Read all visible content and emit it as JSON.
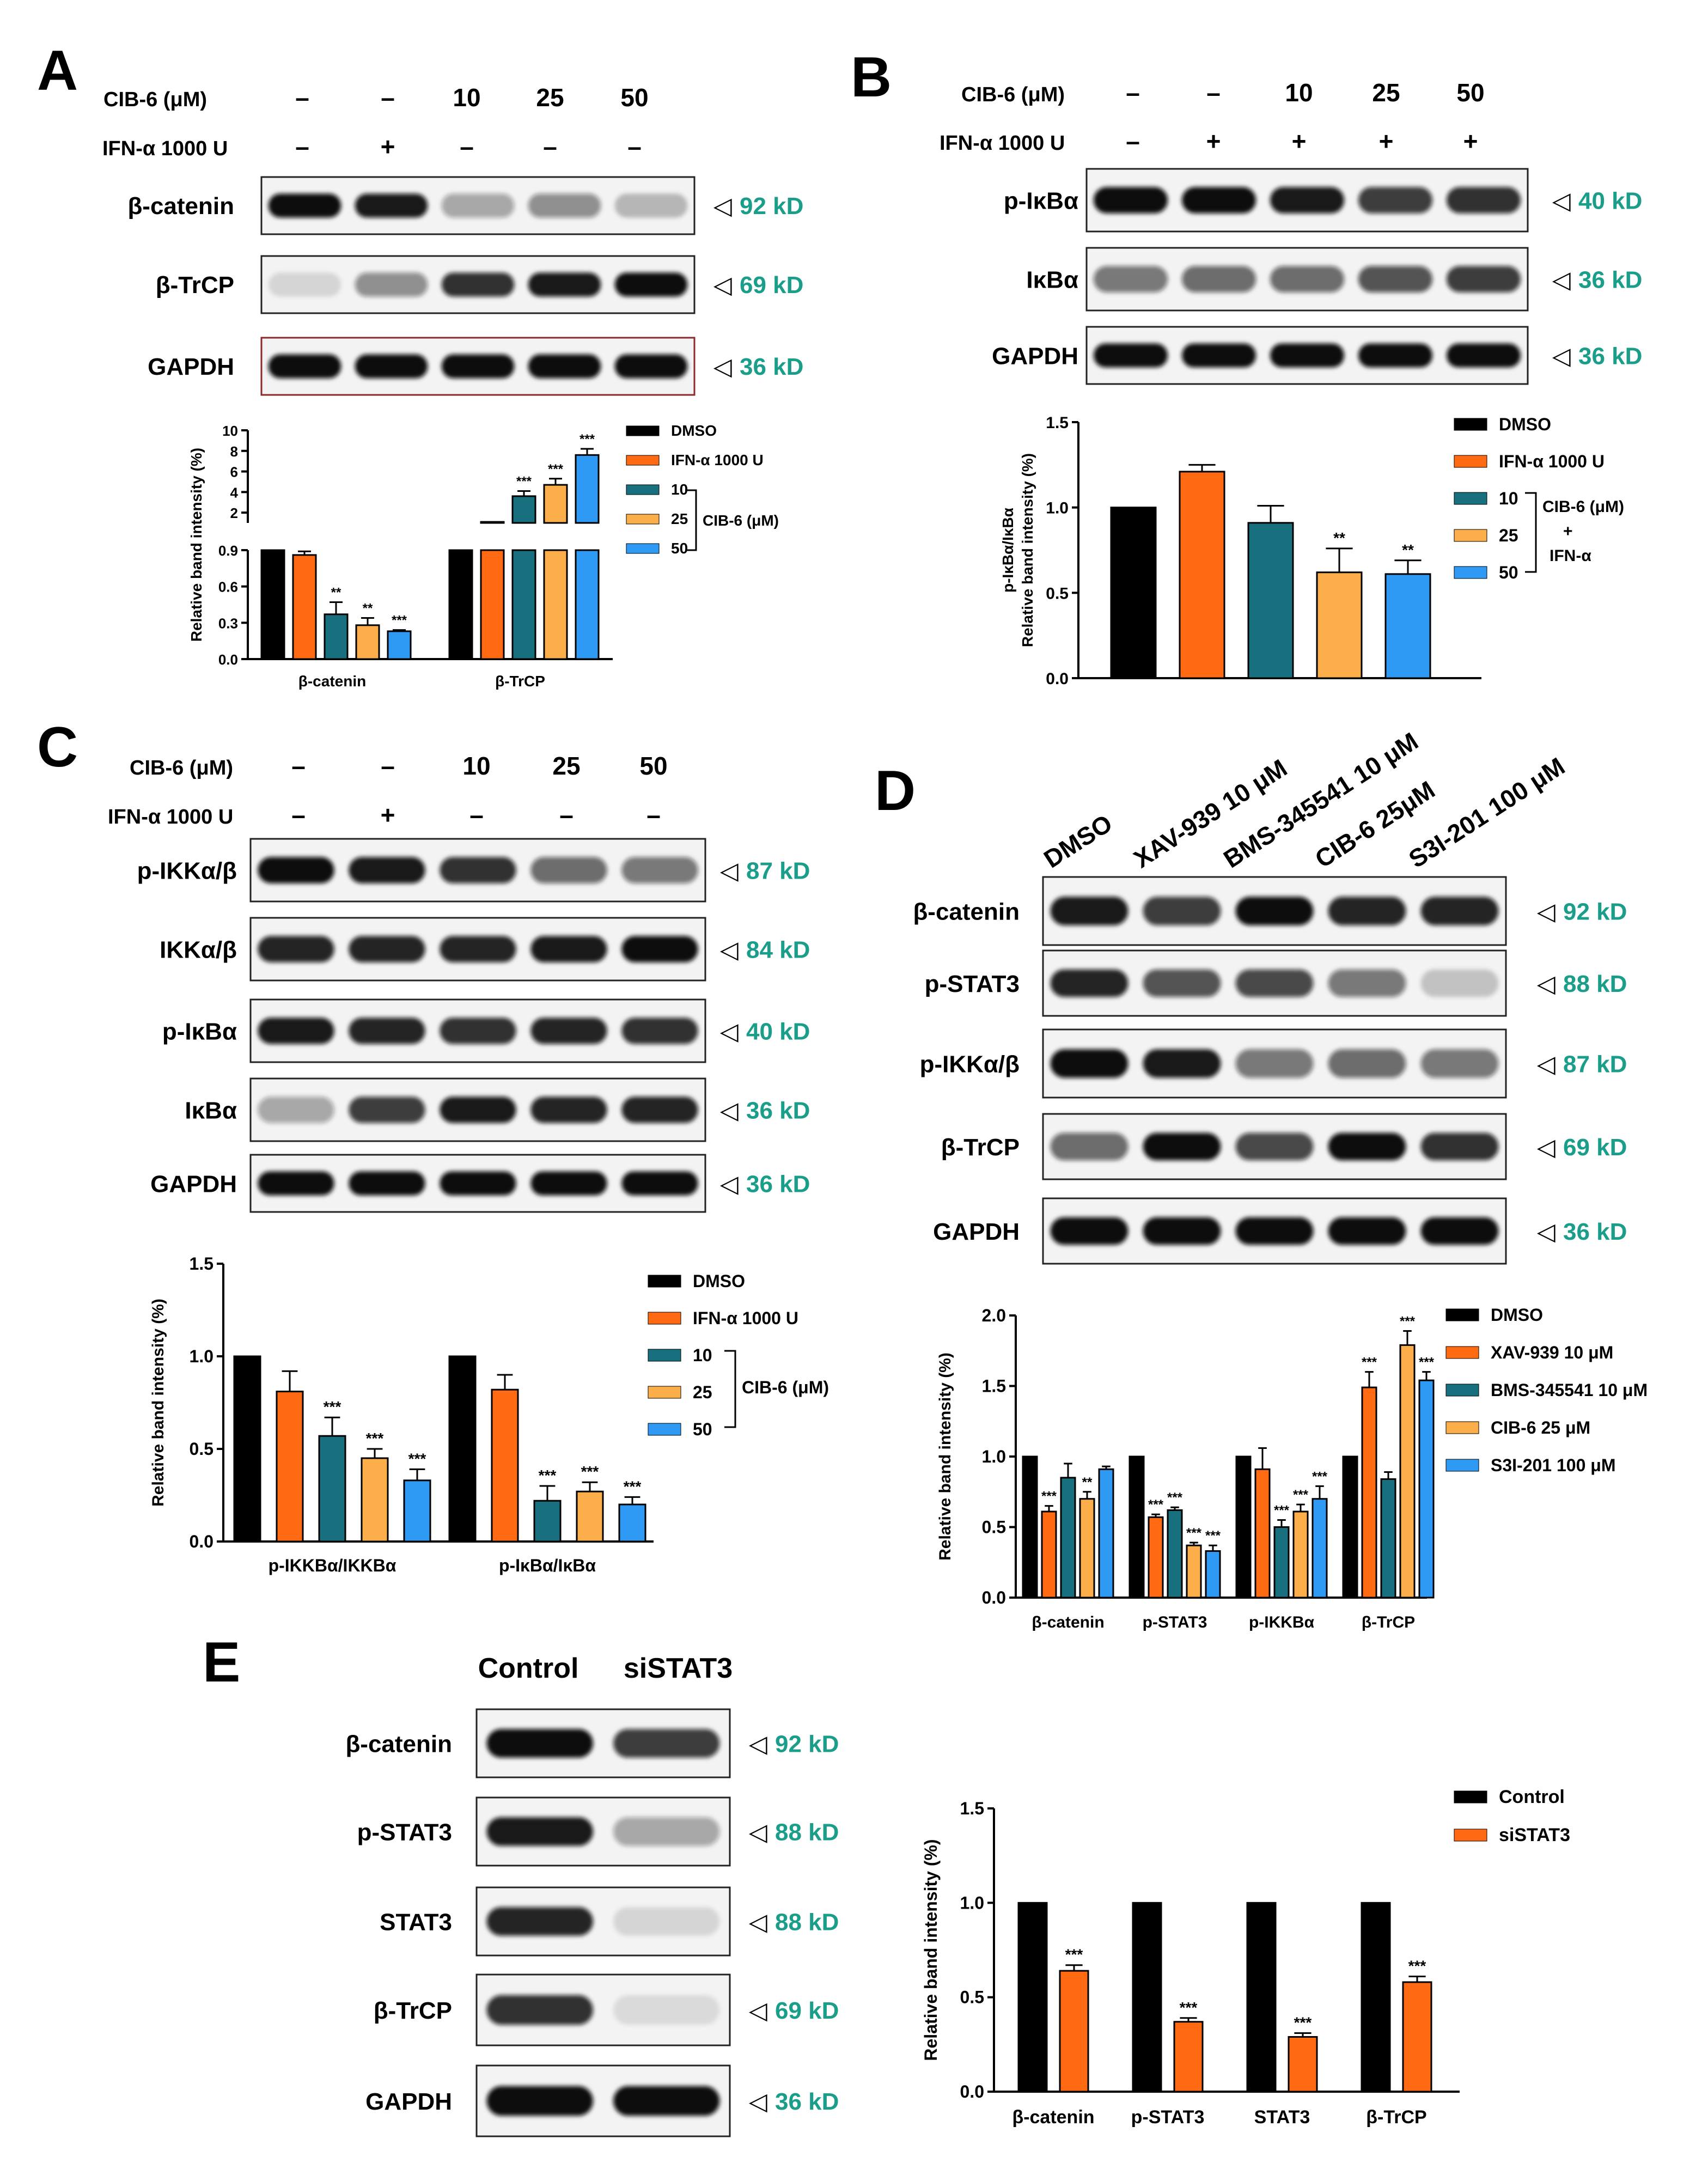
{
  "colors": {
    "black": "#000000",
    "orange": "#ff6a13",
    "teal": "#186f7e",
    "yellow": "#fbae4a",
    "blue": "#2f9af4",
    "green": "#1a9e8a"
  },
  "marker": "◁",
  "panelA": {
    "label": "A",
    "treat": [
      {
        "name": "CIB-6 (μM)",
        "vals": [
          "–",
          "–",
          "10",
          "25",
          "50"
        ]
      },
      {
        "name": "IFN-α 1000 U",
        "vals": [
          "–",
          "+",
          "–",
          "–",
          "–"
        ]
      }
    ],
    "blots": [
      {
        "name": "β-catenin",
        "kd": "92 kD"
      },
      {
        "name": "β-TrCP",
        "kd": "69 kD"
      },
      {
        "name": "GAPDH",
        "kd": "36 kD"
      }
    ],
    "legend": [
      "DMSO",
      "IFN-α 1000 U",
      "10",
      "25",
      "50"
    ],
    "bracket": "CIB-6 (μM)"
  },
  "panelB": {
    "label": "B",
    "treat": [
      {
        "name": "CIB-6 (μM)",
        "vals": [
          "–",
          "–",
          "10",
          "25",
          "50"
        ]
      },
      {
        "name": "IFN-α 1000 U",
        "vals": [
          "–",
          "+",
          "+",
          "+",
          "+"
        ]
      }
    ],
    "blots": [
      {
        "name": "p-IκBα",
        "kd": "40 kD"
      },
      {
        "name": "IκBα",
        "kd": "36 kD"
      },
      {
        "name": "GAPDH",
        "kd": "36 kD"
      }
    ],
    "legend": [
      "DMSO",
      "IFN-α 1000 U",
      "10",
      "25",
      "50"
    ],
    "bracket": [
      "CIB-6 (μM)",
      "+",
      "IFN-α"
    ]
  },
  "panelC": {
    "label": "C",
    "treat": [
      {
        "name": "CIB-6 (μM)",
        "vals": [
          "–",
          "–",
          "10",
          "25",
          "50"
        ]
      },
      {
        "name": "IFN-α 1000 U",
        "vals": [
          "–",
          "+",
          "–",
          "–",
          "–"
        ]
      }
    ],
    "blots": [
      {
        "name": "p-IKKα/β",
        "kd": "87 kD"
      },
      {
        "name": "IKKα/β",
        "kd": "84 kD"
      },
      {
        "name": "p-IκBα",
        "kd": "40 kD"
      },
      {
        "name": "IκBα",
        "kd": "36 kD"
      },
      {
        "name": "GAPDH",
        "kd": "36 kD"
      }
    ],
    "legend": [
      "DMSO",
      "IFN-α 1000 U",
      "10",
      "25",
      "50"
    ],
    "bracket": "CIB-6 (μM)"
  },
  "panelD": {
    "label": "D",
    "lanes": [
      "DMSO",
      "XAV-939 10 μM",
      "BMS-345541 10 μM",
      "CIB-6 25μM",
      "S3I-201 100 μM"
    ],
    "blots": [
      {
        "name": "β-catenin",
        "kd": "92 kD"
      },
      {
        "name": "p-STAT3",
        "kd": "88 kD"
      },
      {
        "name": "p-IKKα/β",
        "kd": "87 kD"
      },
      {
        "name": "β-TrCP",
        "kd": "69 kD"
      },
      {
        "name": "GAPDH",
        "kd": "36 kD"
      }
    ],
    "legend": [
      "DMSO",
      "XAV-939 10 μM",
      "BMS-345541 10 μM",
      "CIB-6 25 μM",
      "S3I-201 100 μM"
    ]
  },
  "panelE": {
    "label": "E",
    "lanes": [
      "Control",
      "siSTAT3"
    ],
    "blots": [
      {
        "name": "β-catenin",
        "kd": "92 kD"
      },
      {
        "name": "p-STAT3",
        "kd": "88 kD"
      },
      {
        "name": "STAT3",
        "kd": "88 kD"
      },
      {
        "name": "β-TrCP",
        "kd": "69 kD"
      },
      {
        "name": "GAPDH",
        "kd": "36 kD"
      }
    ],
    "legend": [
      "Control",
      "siSTAT3"
    ]
  },
  "chart_data": [
    {
      "id": "A",
      "type": "bar",
      "ylabel": "Relative band intensity (%)",
      "broken_axis": true,
      "ylim_lower": [
        0,
        0.9
      ],
      "ylim_upper": [
        0,
        10
      ],
      "yticks_lower": [
        "0.0",
        "0.3",
        "0.6",
        "0.9"
      ],
      "yticks_upper": [
        "2",
        "4",
        "6",
        "8",
        "10"
      ],
      "categories": [
        "β-catenin",
        "β-TrCP"
      ],
      "series": [
        {
          "name": "DMSO",
          "values": [
            1.0,
            1.0
          ],
          "errors": [
            0,
            0
          ],
          "sig": [
            "",
            ""
          ]
        },
        {
          "name": "IFN-α 1000 U",
          "values": [
            0.86,
            1.1
          ],
          "errors": [
            0.03,
            0.05
          ],
          "sig": [
            "",
            ""
          ]
        },
        {
          "name": "10",
          "values": [
            0.37,
            3.6
          ],
          "errors": [
            0.1,
            0.5
          ],
          "sig": [
            "**",
            "***"
          ]
        },
        {
          "name": "25",
          "values": [
            0.28,
            4.7
          ],
          "errors": [
            0.06,
            0.6
          ],
          "sig": [
            "**",
            "***"
          ]
        },
        {
          "name": "50",
          "values": [
            0.23,
            7.6
          ],
          "errors": [
            0.01,
            0.6
          ],
          "sig": [
            "***",
            "***"
          ]
        }
      ]
    },
    {
      "id": "B",
      "type": "bar",
      "ylabel": [
        "p-IκBα/IκBα",
        "Relative band intensity (%)"
      ],
      "ylim": [
        0,
        1.5
      ],
      "yticks": [
        "0.0",
        "0.5",
        "1.0",
        "1.5"
      ],
      "categories": [
        ""
      ],
      "series": [
        {
          "name": "DMSO",
          "values": [
            1.0
          ],
          "errors": [
            0
          ],
          "sig": [
            ""
          ]
        },
        {
          "name": "IFN-α 1000 U",
          "values": [
            1.21
          ],
          "errors": [
            0.04
          ],
          "sig": [
            ""
          ]
        },
        {
          "name": "10",
          "values": [
            0.91
          ],
          "errors": [
            0.1
          ],
          "sig": [
            ""
          ]
        },
        {
          "name": "25",
          "values": [
            0.62
          ],
          "errors": [
            0.14
          ],
          "sig": [
            "**"
          ]
        },
        {
          "name": "50",
          "values": [
            0.61
          ],
          "errors": [
            0.08
          ],
          "sig": [
            "**"
          ]
        }
      ]
    },
    {
      "id": "C",
      "type": "bar",
      "ylabel": "Relative band intensity (%)",
      "ylim": [
        0,
        1.5
      ],
      "yticks": [
        "0.0",
        "0.5",
        "1.0",
        "1.5"
      ],
      "categories": [
        "p-IKKBα/IKKBα",
        "p-IκBα/IκBα"
      ],
      "series": [
        {
          "name": "DMSO",
          "values": [
            1.0,
            1.0
          ],
          "errors": [
            0,
            0
          ],
          "sig": [
            "",
            ""
          ]
        },
        {
          "name": "IFN-α 1000 U",
          "values": [
            0.81,
            0.82
          ],
          "errors": [
            0.11,
            0.08
          ],
          "sig": [
            "",
            ""
          ]
        },
        {
          "name": "10",
          "values": [
            0.57,
            0.22
          ],
          "errors": [
            0.1,
            0.08
          ],
          "sig": [
            "***",
            "***"
          ]
        },
        {
          "name": "25",
          "values": [
            0.45,
            0.27
          ],
          "errors": [
            0.05,
            0.05
          ],
          "sig": [
            "***",
            "***"
          ]
        },
        {
          "name": "50",
          "values": [
            0.33,
            0.2
          ],
          "errors": [
            0.06,
            0.04
          ],
          "sig": [
            "***",
            "***"
          ]
        }
      ]
    },
    {
      "id": "D",
      "type": "bar",
      "ylabel": "Relative band intensity (%)",
      "ylim": [
        0,
        2.0
      ],
      "yticks": [
        "0.0",
        "0.5",
        "1.0",
        "1.5",
        "2.0"
      ],
      "categories": [
        "β-catenin",
        "p-STAT3",
        "p-IKKBα",
        "β-TrCP"
      ],
      "series": [
        {
          "name": "DMSO",
          "values": [
            1.0,
            1.0,
            1.0,
            1.0
          ],
          "errors": [
            0,
            0,
            0,
            0
          ],
          "sig": [
            "",
            "",
            "",
            ""
          ]
        },
        {
          "name": "XAV-939 10 μM",
          "values": [
            0.61,
            0.57,
            0.91,
            1.49
          ],
          "errors": [
            0.04,
            0.02,
            0.15,
            0.11
          ],
          "sig": [
            "***",
            "***",
            "",
            "***"
          ]
        },
        {
          "name": "BMS-345541 10 μM",
          "values": [
            0.85,
            0.62,
            0.5,
            0.84
          ],
          "errors": [
            0.1,
            0.02,
            0.05,
            0.05
          ],
          "sig": [
            "",
            "***",
            "***",
            ""
          ]
        },
        {
          "name": "CIB-6 25 μM",
          "values": [
            0.7,
            0.37,
            0.61,
            1.79
          ],
          "errors": [
            0.05,
            0.02,
            0.05,
            0.1
          ],
          "sig": [
            "**",
            "***",
            "***",
            "***"
          ]
        },
        {
          "name": "S3I-201 100 μM",
          "values": [
            0.91,
            0.33,
            0.7,
            1.54
          ],
          "errors": [
            0.02,
            0.04,
            0.09,
            0.06
          ],
          "sig": [
            "",
            "***",
            "***",
            "***"
          ]
        }
      ]
    },
    {
      "id": "E",
      "type": "bar",
      "ylabel": "Relative band intensity (%)",
      "ylim": [
        0,
        1.5
      ],
      "yticks": [
        "0.0",
        "0.5",
        "1.0",
        "1.5"
      ],
      "categories": [
        "β-catenin",
        "p-STAT3",
        "STAT3",
        "β-TrCP"
      ],
      "series": [
        {
          "name": "Control",
          "values": [
            1.0,
            1.0,
            1.0,
            1.0
          ],
          "errors": [
            0,
            0,
            0,
            0
          ],
          "sig": [
            "",
            "",
            "",
            ""
          ]
        },
        {
          "name": "siSTAT3",
          "values": [
            0.64,
            0.37,
            0.29,
            0.58
          ],
          "errors": [
            0.03,
            0.02,
            0.02,
            0.03
          ],
          "sig": [
            "***",
            "***",
            "***",
            "***"
          ]
        }
      ]
    }
  ]
}
